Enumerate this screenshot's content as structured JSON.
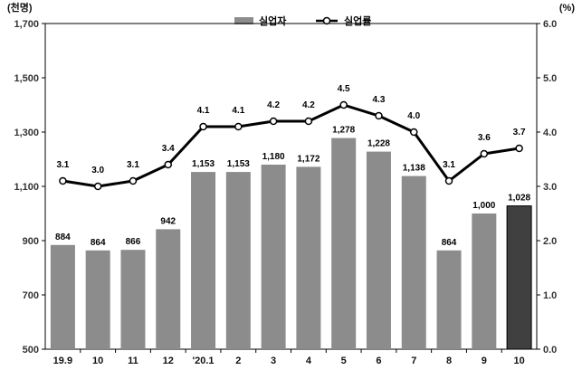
{
  "chart_data": {
    "type": "bar",
    "categories": [
      "19.9",
      "10",
      "11",
      "12",
      "'20.1",
      "2",
      "3",
      "4",
      "5",
      "6",
      "7",
      "8",
      "9",
      "10"
    ],
    "left_axis": {
      "unit": "(천명)",
      "min": 500,
      "max": 1700,
      "ticks": [
        "500",
        "700",
        "900",
        "1,100",
        "1,300",
        "1,500",
        "1,700"
      ]
    },
    "right_axis": {
      "unit": "(%)",
      "min": 0,
      "max": 6,
      "ticks": [
        "0.0",
        "1.0",
        "2.0",
        "3.0",
        "4.0",
        "5.0",
        "6.0"
      ]
    },
    "series": [
      {
        "name": "실업자",
        "type": "bar",
        "axis": "left",
        "values": [
          884,
          864,
          866,
          942,
          1153,
          1153,
          1180,
          1172,
          1278,
          1228,
          1138,
          864,
          1000,
          1028
        ],
        "labels": [
          "884",
          "864",
          "866",
          "942",
          "1,153",
          "1,153",
          "1,180",
          "1,172",
          "1,278",
          "1,228",
          "1,138",
          "864",
          "1,000",
          "1,028"
        ],
        "color": "#8c8c8c",
        "highlight_color": "#404040"
      },
      {
        "name": "실업률",
        "type": "line",
        "axis": "right",
        "values": [
          3.1,
          3.0,
          3.1,
          3.4,
          4.1,
          4.1,
          4.2,
          4.2,
          4.5,
          4.3,
          4.0,
          3.1,
          3.6,
          3.7
        ],
        "labels": [
          "3.1",
          "3.0",
          "3.1",
          "3.4",
          "4.1",
          "4.1",
          "4.2",
          "4.2",
          "4.5",
          "4.3",
          "4.0",
          "3.1",
          "3.6",
          "3.7"
        ],
        "color": "#000000"
      }
    ],
    "grid": false,
    "legend": "top-center"
  }
}
